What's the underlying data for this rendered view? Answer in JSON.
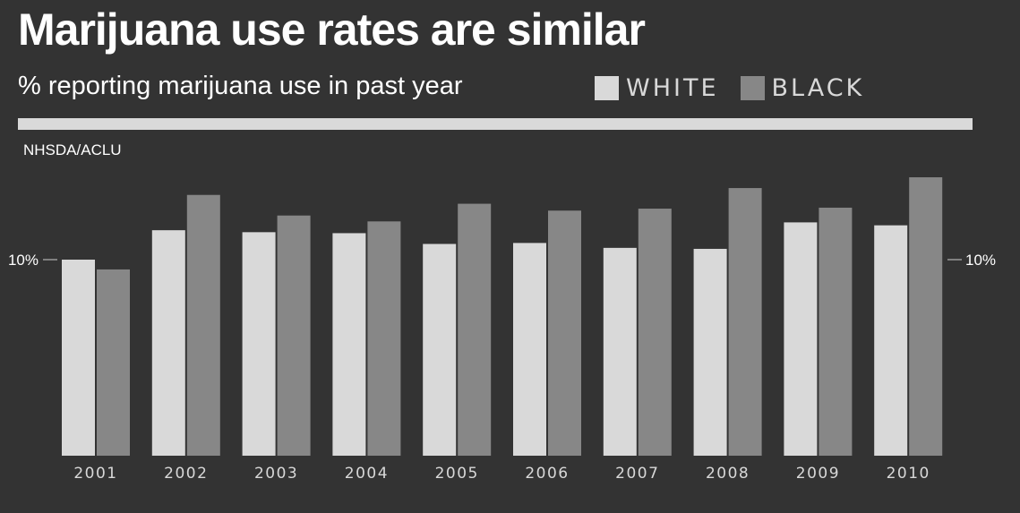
{
  "title": "Marijuana use rates are similar",
  "subtitle": "% reporting marijuana use in past year",
  "legend": [
    {
      "label": "WHITE",
      "color": "#d9d9d9"
    },
    {
      "label": "BLACK",
      "color": "#878787"
    }
  ],
  "source": "NHSDA/ACLU",
  "chart_data": {
    "type": "bar",
    "title": "Marijuana use rates are similar",
    "subtitle": "% reporting marijuana use in past year",
    "xlabel": "",
    "ylabel": "% reporting marijuana use in past year",
    "categories": [
      "2001",
      "2002",
      "2003",
      "2004",
      "2005",
      "2006",
      "2007",
      "2008",
      "2009",
      "2010"
    ],
    "series": [
      {
        "name": "WHITE",
        "color": "#d9d9d9",
        "values": [
          10.0,
          11.5,
          11.4,
          11.35,
          10.8,
          10.85,
          10.6,
          10.55,
          11.9,
          11.75
        ]
      },
      {
        "name": "BLACK",
        "color": "#878787",
        "values": [
          9.5,
          13.3,
          12.25,
          11.95,
          12.85,
          12.5,
          12.6,
          13.65,
          12.65,
          14.2
        ]
      }
    ],
    "ylim": [
      0,
      15
    ],
    "yticks": [
      {
        "value": 10,
        "label": "10%"
      }
    ],
    "grid": false,
    "legend_position": "top-right"
  }
}
